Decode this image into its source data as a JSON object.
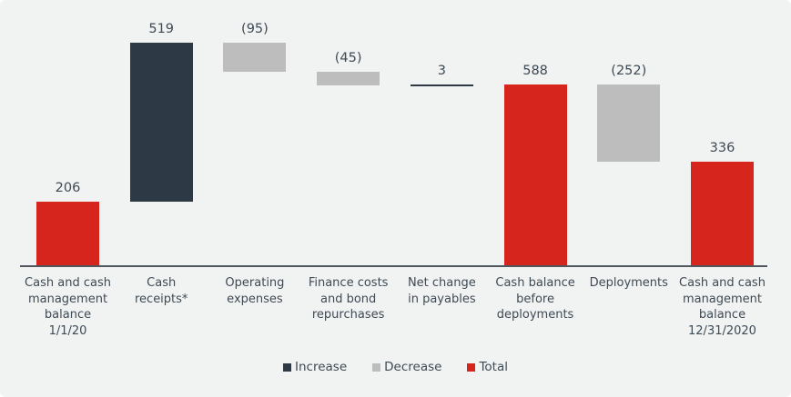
{
  "chart_data": {
    "type": "bar",
    "subtype": "waterfall",
    "title": "",
    "xlabel": "",
    "ylabel": "",
    "ylim": [
      0,
      725
    ],
    "grid": false,
    "legend_position": "bottom",
    "categories": [
      "Cash and cash management balance 1/1/20",
      "Cash receipts*",
      "Operating expenses",
      "Finance costs and bond repurchases",
      "Net change in payables",
      "Cash balance before deployments",
      "Deployments",
      "Cash and cash management balance 12/31/2020"
    ],
    "values": [
      206,
      519,
      -95,
      -45,
      3,
      588,
      -252,
      336
    ],
    "bars": [
      {
        "category": "Cash and cash management balance 1/1/20",
        "category_display": "Cash and cash\nmanagement\nbalance\n1/1/20",
        "value": 206,
        "value_label": "206",
        "kind": "total",
        "start": 0,
        "end": 206
      },
      {
        "category": "Cash receipts*",
        "category_display": "Cash\nreceipts*",
        "value": 519,
        "value_label": "519",
        "kind": "increase",
        "start": 206,
        "end": 725
      },
      {
        "category": "Operating expenses",
        "category_display": "Operating\nexpenses",
        "value": -95,
        "value_label": "(95)",
        "kind": "decrease",
        "start": 725,
        "end": 630
      },
      {
        "category": "Finance costs and bond repurchases",
        "category_display": "Finance costs\nand bond\nrepurchases",
        "value": -45,
        "value_label": "(45)",
        "kind": "decrease",
        "start": 630,
        "end": 585
      },
      {
        "category": "Net change in payables",
        "category_display": "Net change\nin payables",
        "value": 3,
        "value_label": "3",
        "kind": "increase",
        "start": 585,
        "end": 588
      },
      {
        "category": "Cash balance before deployments",
        "category_display": "Cash balance\nbefore\ndeployments",
        "value": 588,
        "value_label": "588",
        "kind": "total",
        "start": 0,
        "end": 588
      },
      {
        "category": "Deployments",
        "category_display": "Deployments",
        "value": -252,
        "value_label": "(252)",
        "kind": "decrease",
        "start": 588,
        "end": 336
      },
      {
        "category": "Cash and cash management balance 12/31/2020",
        "category_display": "Cash and cash\nmanagement\nbalance\n12/31/2020",
        "value": 336,
        "value_label": "336",
        "kind": "total",
        "start": 0,
        "end": 336
      }
    ],
    "legend": [
      {
        "label": "Increase",
        "kind": "increase",
        "color": "#2d3944"
      },
      {
        "label": "Decrease",
        "kind": "decrease",
        "color": "#bdbdbd"
      },
      {
        "label": "Total",
        "kind": "total",
        "color": "#d6251c"
      }
    ],
    "colors": {
      "increase": "#2d3944",
      "decrease": "#bdbdbd",
      "total": "#d6251c",
      "background": "#f1f2f2",
      "axis_line": "#50575e",
      "text": "#3e4a54"
    }
  }
}
